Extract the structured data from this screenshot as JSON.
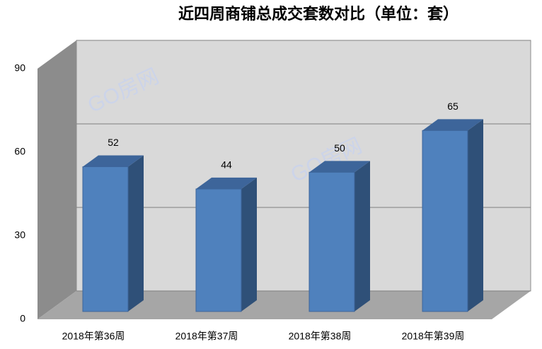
{
  "chart_data": {
    "type": "bar3d",
    "title": "近四周商铺总成交套数对比（单位：套）",
    "categories": [
      "2018年第36周",
      "2018年第37周",
      "2018年第38周",
      "2018年第39周"
    ],
    "values": [
      52,
      44,
      50,
      65
    ],
    "color": "#4f81bd",
    "ylim": [
      0,
      90
    ],
    "yticks": [
      0,
      30,
      60,
      90
    ],
    "grid": true,
    "watermark": "GO房网"
  }
}
